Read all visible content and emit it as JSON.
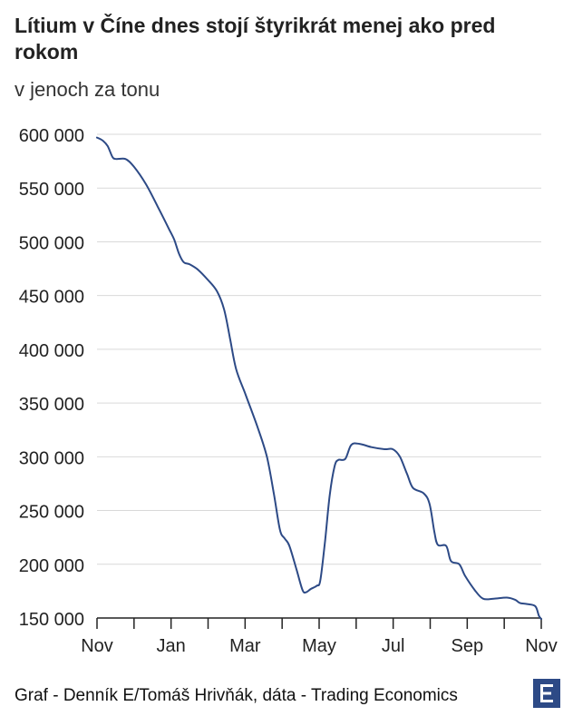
{
  "header": {
    "title": "Lítium v Číne dnes stojí štyrikrát menej ako pred rokom",
    "subtitle": "v jenoch za tonu"
  },
  "footer": {
    "source": "Graf - Denník E/Tomáš Hrivňák, dáta - Trading Economics"
  },
  "logo_letter": "E",
  "colors": {
    "line": "#2d4a86",
    "grid": "#d9d9d9",
    "axis": "#222222",
    "logo": "#2d4a86"
  },
  "chart_data": {
    "type": "line",
    "xlabel": "",
    "ylabel": "",
    "x_ticks": [
      "Nov",
      "Jan",
      "Mar",
      "May",
      "Jul",
      "Sep",
      "Nov"
    ],
    "y_ticks": [
      "600 000",
      "550 000",
      "500 000",
      "450 000",
      "400 000",
      "350 000",
      "300 000",
      "250 000",
      "200 000",
      "150 000"
    ],
    "y_tick_values": [
      600000,
      550000,
      500000,
      450000,
      400000,
      350000,
      300000,
      250000,
      200000,
      150000
    ],
    "ylim": [
      150000,
      600000
    ],
    "xlim": [
      "2022-11-01",
      "2023-11-10"
    ],
    "grid": true,
    "series": [
      {
        "points": [
          [
            "2022-11-01",
            597000
          ],
          [
            "2022-11-06",
            594000
          ],
          [
            "2022-11-10",
            589000
          ],
          [
            "2022-11-14",
            579000
          ],
          [
            "2022-11-17",
            577000
          ],
          [
            "2022-11-25",
            577000
          ],
          [
            "2022-12-02",
            570000
          ],
          [
            "2022-12-12",
            554000
          ],
          [
            "2022-12-22",
            533000
          ],
          [
            "2023-01-01",
            511000
          ],
          [
            "2023-01-05",
            502000
          ],
          [
            "2023-01-09",
            489000
          ],
          [
            "2023-01-13",
            481000
          ],
          [
            "2023-01-18",
            479000
          ],
          [
            "2023-01-25",
            474000
          ],
          [
            "2023-02-02",
            465000
          ],
          [
            "2023-02-10",
            454000
          ],
          [
            "2023-02-16",
            437000
          ],
          [
            "2023-02-21",
            410000
          ],
          [
            "2023-02-26",
            382000
          ],
          [
            "2023-03-06",
            358000
          ],
          [
            "2023-03-16",
            328000
          ],
          [
            "2023-03-24",
            300000
          ],
          [
            "2023-03-30",
            265000
          ],
          [
            "2023-04-04",
            232000
          ],
          [
            "2023-04-08",
            224000
          ],
          [
            "2023-04-12",
            217000
          ],
          [
            "2023-04-18",
            195000
          ],
          [
            "2023-04-23",
            176000
          ],
          [
            "2023-04-26",
            174000
          ],
          [
            "2023-04-30",
            177000
          ],
          [
            "2023-05-05",
            180000
          ],
          [
            "2023-05-08",
            185000
          ],
          [
            "2023-05-12",
            222000
          ],
          [
            "2023-05-16",
            265000
          ],
          [
            "2023-05-20",
            291000
          ],
          [
            "2023-05-23",
            297000
          ],
          [
            "2023-05-29",
            298000
          ],
          [
            "2023-06-03",
            311000
          ],
          [
            "2023-06-10",
            312000
          ],
          [
            "2023-06-20",
            309000
          ],
          [
            "2023-07-01",
            307000
          ],
          [
            "2023-07-08",
            307000
          ],
          [
            "2023-07-14",
            300000
          ],
          [
            "2023-07-20",
            284000
          ],
          [
            "2023-07-25",
            271000
          ],
          [
            "2023-08-03",
            266000
          ],
          [
            "2023-08-08",
            256000
          ],
          [
            "2023-08-12",
            230000
          ],
          [
            "2023-08-15",
            218000
          ],
          [
            "2023-08-22",
            217000
          ],
          [
            "2023-08-26",
            203000
          ],
          [
            "2023-09-02",
            200000
          ],
          [
            "2023-09-07",
            189000
          ],
          [
            "2023-09-15",
            176000
          ],
          [
            "2023-09-22",
            168000
          ],
          [
            "2023-10-01",
            168000
          ],
          [
            "2023-10-12",
            169000
          ],
          [
            "2023-10-19",
            167000
          ],
          [
            "2023-10-23",
            164000
          ],
          [
            "2023-10-29",
            163000
          ],
          [
            "2023-11-05",
            161000
          ],
          [
            "2023-11-08",
            152000
          ],
          [
            "2023-11-10",
            149000
          ]
        ]
      }
    ]
  }
}
